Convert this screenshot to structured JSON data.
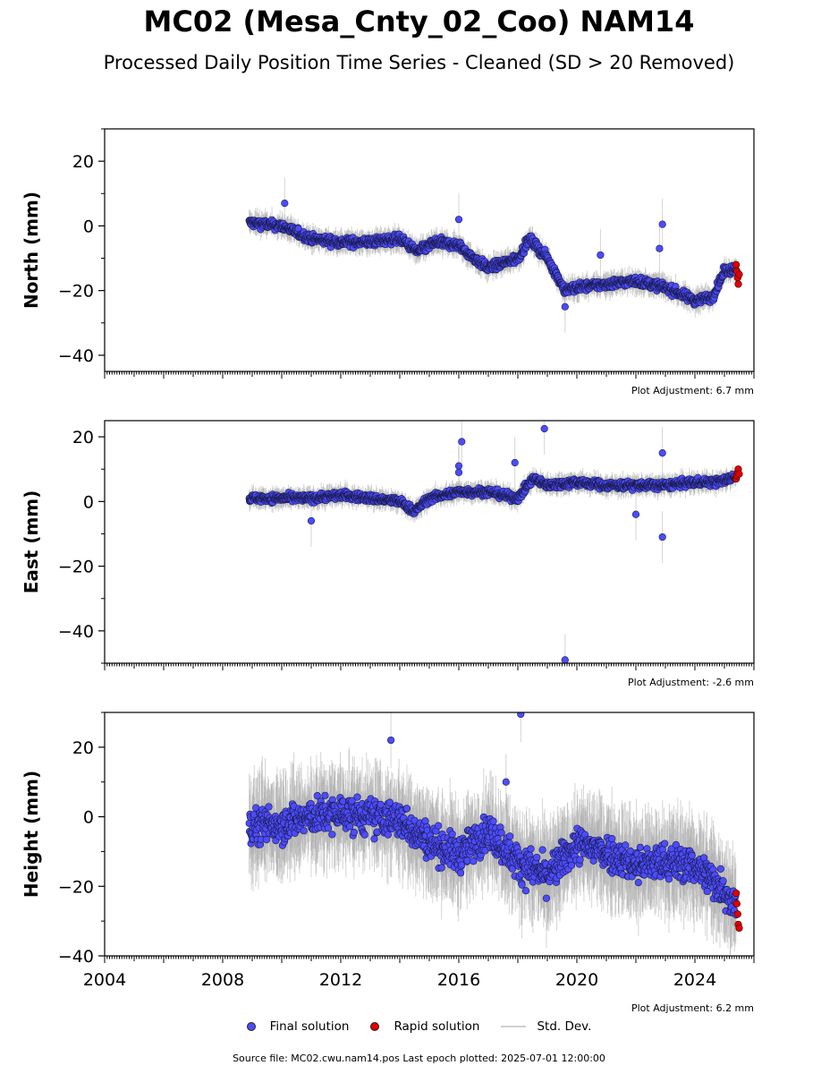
{
  "title": "MC02 (Mesa_Cnty_02_Coo) NAM14",
  "subtitle": "Processed Daily Position Time Series - Cleaned (SD > 20 Removed)",
  "legend": {
    "final": "Final solution",
    "rapid": "Rapid solution",
    "sd": "Std. Dev."
  },
  "source_text": "Source file: MC02.cwu.nam14.pos  Last epoch plotted: 2025-07-01 12:00:00",
  "colors": {
    "final": "#4c4cff",
    "rapid": "#e00000",
    "sd": "#a0a0a0"
  },
  "chart_data": [
    {
      "type": "scatter",
      "ylabel": "North (mm)",
      "xlim": [
        2004,
        2026
      ],
      "ylim": [
        -45,
        30
      ],
      "yticks": [
        -40,
        -20,
        0,
        20
      ],
      "adjustment": "Plot Adjustment: 6.7 mm",
      "grid": false,
      "trend": [
        [
          2008.9,
          1
        ],
        [
          2010.0,
          0
        ],
        [
          2011.0,
          -4
        ],
        [
          2012.0,
          -5
        ],
        [
          2013.0,
          -5
        ],
        [
          2014.0,
          -4
        ],
        [
          2014.6,
          -8
        ],
        [
          2015.2,
          -5
        ],
        [
          2016.0,
          -6
        ],
        [
          2016.5,
          -10
        ],
        [
          2017.0,
          -13
        ],
        [
          2018.0,
          -10
        ],
        [
          2018.4,
          -4
        ],
        [
          2019.0,
          -10
        ],
        [
          2019.6,
          -20
        ],
        [
          2020.0,
          -19
        ],
        [
          2021.0,
          -18
        ],
        [
          2022.0,
          -17
        ],
        [
          2023.0,
          -19
        ],
        [
          2024.0,
          -23
        ],
        [
          2024.6,
          -22
        ],
        [
          2025.0,
          -14
        ],
        [
          2025.5,
          -13
        ]
      ],
      "spread": 1.6,
      "outliers": [
        [
          2010.1,
          7
        ],
        [
          2016.0,
          2
        ],
        [
          2019.6,
          -25
        ],
        [
          2020.8,
          -9
        ],
        [
          2022.9,
          0.5
        ],
        [
          2022.8,
          -7
        ]
      ],
      "rapid": [
        [
          2025.4,
          -12
        ],
        [
          2025.42,
          -14
        ],
        [
          2025.45,
          -16
        ],
        [
          2025.47,
          -18
        ],
        [
          2025.5,
          -15
        ]
      ]
    },
    {
      "type": "scatter",
      "ylabel": "East (mm)",
      "xlim": [
        2004,
        2026
      ],
      "ylim": [
        -50,
        25
      ],
      "yticks": [
        -40,
        -20,
        0,
        20
      ],
      "adjustment": "Plot Adjustment: -2.6 mm",
      "grid": false,
      "trend": [
        [
          2008.9,
          1
        ],
        [
          2010.0,
          1
        ],
        [
          2011.0,
          1
        ],
        [
          2012.0,
          2
        ],
        [
          2013.0,
          1
        ],
        [
          2014.0,
          0
        ],
        [
          2014.5,
          -3
        ],
        [
          2015.0,
          1
        ],
        [
          2016.0,
          3
        ],
        [
          2017.0,
          3
        ],
        [
          2018.0,
          1
        ],
        [
          2018.5,
          7
        ],
        [
          2019.0,
          5
        ],
        [
          2020.0,
          6
        ],
        [
          2021.0,
          5
        ],
        [
          2022.0,
          5
        ],
        [
          2023.0,
          5
        ],
        [
          2024.0,
          6
        ],
        [
          2024.8,
          6
        ],
        [
          2025.5,
          8
        ]
      ],
      "spread": 1.4,
      "outliers": [
        [
          2016.1,
          18.5
        ],
        [
          2016.0,
          11
        ],
        [
          2016.0,
          9
        ],
        [
          2017.9,
          12
        ],
        [
          2018.9,
          22.5
        ],
        [
          2019.6,
          -49
        ],
        [
          2022.9,
          -11
        ],
        [
          2022.9,
          15
        ],
        [
          2022.0,
          -4
        ],
        [
          2011.0,
          -6
        ]
      ],
      "rapid": [
        [
          2025.4,
          7
        ],
        [
          2025.42,
          8
        ],
        [
          2025.45,
          9
        ],
        [
          2025.47,
          10
        ],
        [
          2025.5,
          8.5
        ]
      ]
    },
    {
      "type": "scatter",
      "ylabel": "Height (mm)",
      "xlim": [
        2004,
        2026
      ],
      "ylim": [
        -40,
        30
      ],
      "xticks": [
        2004,
        2008,
        2012,
        2016,
        2020,
        2024
      ],
      "yticks": [
        -40,
        -20,
        0,
        20
      ],
      "adjustment": "Plot Adjustment: 6.2 mm",
      "grid": false,
      "trend": [
        [
          2008.9,
          -3
        ],
        [
          2010.0,
          -2
        ],
        [
          2011.0,
          0
        ],
        [
          2012.0,
          1
        ],
        [
          2013.0,
          0
        ],
        [
          2014.0,
          -1
        ],
        [
          2015.0,
          -7
        ],
        [
          2016.0,
          -11
        ],
        [
          2017.0,
          -4
        ],
        [
          2018.0,
          -13
        ],
        [
          2019.0,
          -17
        ],
        [
          2020.0,
          -8
        ],
        [
          2021.0,
          -10
        ],
        [
          2022.0,
          -14
        ],
        [
          2023.0,
          -13
        ],
        [
          2024.0,
          -14
        ],
        [
          2025.0,
          -21
        ],
        [
          2025.5,
          -27
        ]
      ],
      "spread": 6,
      "outliers": [
        [
          2018.1,
          29.5
        ],
        [
          2013.7,
          22
        ],
        [
          2017.6,
          10
        ]
      ],
      "rapid": [
        [
          2025.4,
          -22
        ],
        [
          2025.42,
          -25
        ],
        [
          2025.45,
          -28
        ],
        [
          2025.47,
          -31
        ],
        [
          2025.5,
          -32
        ]
      ]
    }
  ]
}
